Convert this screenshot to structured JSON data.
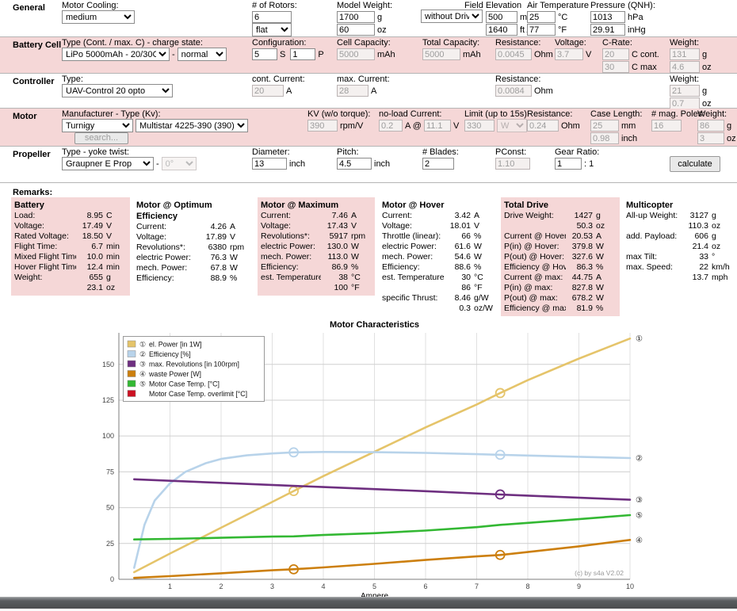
{
  "form": {
    "general": {
      "label": "General",
      "motor_cooling_label": "Motor Cooling:",
      "motor_cooling_value": "medium",
      "rotors_label": "# of Rotors:",
      "rotors_value": "6",
      "rotors_config_value": "flat",
      "model_weight_label": "Model Weight:",
      "model_weight_g": "1700",
      "model_weight_g_unit": "g",
      "model_weight_oz": "60",
      "model_weight_oz_unit": "oz",
      "drive_select_value": "without Drive",
      "field_elevation_label": "Field Elevation",
      "field_elevation_m": "500",
      "field_elevation_m_unit": "m ASL",
      "field_elevation_ft": "1640",
      "field_elevation_ft_unit": "ft ASL",
      "air_temp_label": "Air Temperature",
      "air_temp_c": "25",
      "air_temp_c_unit": "°C",
      "air_temp_f": "77",
      "air_temp_f_unit": "°F",
      "pressure_label": "Pressure (QNH):",
      "pressure_hpa": "1013",
      "pressure_hpa_unit": "hPa",
      "pressure_inhg": "29.91",
      "pressure_inhg_unit": "inHg"
    },
    "battery": {
      "label": "Battery Cell",
      "type_label": "Type (Cont. / max. C) - charge state:",
      "type_value": "LiPo 5000mAh - 20/30C",
      "type_sep": "-",
      "charge_state_value": "normal",
      "config_label": "Configuration:",
      "config_s": "5",
      "config_s_unit": "S",
      "config_p": "1",
      "config_p_unit": "P",
      "cell_capacity_label": "Cell Capacity:",
      "cell_capacity": "5000",
      "cell_capacity_unit": "mAh",
      "total_capacity_label": "Total Capacity:",
      "total_capacity": "5000",
      "total_capacity_unit": "mAh",
      "resistance_label": "Resistance:",
      "resistance": "0.0045",
      "resistance_unit": "Ohm",
      "voltage_label": "Voltage:",
      "voltage": "3.7",
      "voltage_unit": "V",
      "crate_label": "C-Rate:",
      "crate_cont": "20",
      "crate_cont_unit": "C cont.",
      "crate_max": "30",
      "crate_max_unit": "C max",
      "weight_label": "Weight:",
      "weight_g": "131",
      "weight_g_unit": "g",
      "weight_oz": "4.6",
      "weight_oz_unit": "oz"
    },
    "controller": {
      "label": "Controller",
      "type_label": "Type:",
      "type_value": "UAV-Control 20 opto",
      "cont_current_label": "cont. Current:",
      "cont_current": "20",
      "cont_current_unit": "A",
      "max_current_label": "max. Current:",
      "max_current": "28",
      "max_current_unit": "A",
      "resistance_label": "Resistance:",
      "resistance": "0.0084",
      "resistance_unit": "Ohm",
      "weight_label": "Weight:",
      "weight_g": "21",
      "weight_g_unit": "g",
      "weight_oz": "0.7",
      "weight_oz_unit": "oz"
    },
    "motor": {
      "label": "Motor",
      "manufacturer_label": "Manufacturer - Type (Kv):",
      "manufacturer_value": "Turnigy",
      "type_value": "Multistar 4225-390 (390)",
      "search_button": "search...",
      "kv_label": "KV (w/o torque):",
      "kv": "390",
      "kv_unit": "rpm/V",
      "noload_label": "no-load Current:",
      "noload_a": "0.2",
      "noload_a_unit": "A @",
      "noload_v": "11.1",
      "noload_v_unit": "V",
      "limit_label": "Limit (up to 15s):",
      "limit": "330",
      "limit_unit_value": "W",
      "resistance_label": "Resistance:",
      "resistance": "0.24",
      "resistance_unit": "Ohm",
      "case_length_label": "Case Length:",
      "case_mm": "25",
      "case_mm_unit": "mm",
      "case_inch": "0.98",
      "case_inch_unit": "inch",
      "poles_label": "# mag. Poles:",
      "poles": "16",
      "weight_label": "Weight:",
      "weight_g": "86",
      "weight_g_unit": "g",
      "weight_oz": "3",
      "weight_oz_unit": "oz"
    },
    "propeller": {
      "label": "Propeller",
      "type_label": "Type - yoke twist:",
      "type_value": "Graupner E Prop",
      "type_sep": "-",
      "yoke_value": "0°",
      "diameter_label": "Diameter:",
      "diameter": "13",
      "diameter_unit": "inch",
      "pitch_label": "Pitch:",
      "pitch": "4.5",
      "pitch_unit": "inch",
      "blades_label": "# Blades:",
      "blades": "2",
      "pconst_label": "PConst:",
      "pconst": "1.10",
      "gear_label": "Gear Ratio:",
      "gear": "1",
      "gear_unit": ": 1",
      "calculate_button": "calculate"
    }
  },
  "results": {
    "heading": "Remarks:",
    "columns": [
      {
        "title": "Battery",
        "tone": "pink",
        "rows": [
          [
            "Load:",
            "8.95",
            "C"
          ],
          [
            "Voltage:",
            "17.49",
            "V"
          ],
          [
            "Rated Voltage:",
            "18.50",
            "V"
          ],
          [
            "Flight Time:",
            "6.7",
            "min"
          ],
          [
            "Mixed Flight Time:",
            "10.0",
            "min"
          ],
          [
            "Hover Flight Time:",
            "12.4",
            "min"
          ],
          [
            "Weight:",
            "655",
            "g"
          ],
          [
            "",
            "23.1",
            "oz"
          ]
        ]
      },
      {
        "title": "Motor @ Optimum Efficiency",
        "tone": "white",
        "rows": [
          [
            "Current:",
            "4.26",
            "A"
          ],
          [
            "Voltage:",
            "17.89",
            "V"
          ],
          [
            "Revolutions*:",
            "6380",
            "rpm"
          ],
          [
            "electric Power:",
            "76.3",
            "W"
          ],
          [
            "mech. Power:",
            "67.8",
            "W"
          ],
          [
            "Efficiency:",
            "88.9",
            "%"
          ]
        ]
      },
      {
        "title": "Motor @ Maximum",
        "tone": "pink",
        "rows": [
          [
            "Current:",
            "7.46",
            "A"
          ],
          [
            "Voltage:",
            "17.43",
            "V"
          ],
          [
            "Revolutions*:",
            "5917",
            "rpm"
          ],
          [
            "electric Power:",
            "130.0",
            "W"
          ],
          [
            "mech. Power:",
            "113.0",
            "W"
          ],
          [
            "Efficiency:",
            "86.9",
            "%"
          ],
          [
            "est. Temperature:",
            "38",
            "°C"
          ],
          [
            "",
            "100",
            "°F"
          ]
        ]
      },
      {
        "title": "Motor @ Hover",
        "tone": "white",
        "rows": [
          [
            "Current:",
            "3.42",
            "A"
          ],
          [
            "Voltage:",
            "18.01",
            "V"
          ],
          [
            "Throttle (linear):",
            "66",
            "%"
          ],
          [
            "electric Power:",
            "61.6",
            "W"
          ],
          [
            "mech. Power:",
            "54.6",
            "W"
          ],
          [
            "Efficiency:",
            "88.6",
            "%"
          ],
          [
            "est. Temperature:",
            "30",
            "°C"
          ],
          [
            "",
            "86",
            "°F"
          ],
          [
            "specific Thrust:",
            "8.46",
            "g/W"
          ],
          [
            "",
            "0.3",
            "oz/W"
          ]
        ]
      },
      {
        "title": "Total Drive",
        "tone": "pink",
        "rows": [
          [
            "Drive Weight:",
            "1427",
            "g"
          ],
          [
            "",
            "50.3",
            "oz"
          ],
          [
            "Current @ Hover:",
            "20.53",
            "A"
          ],
          [
            "P(in) @ Hover:",
            "379.8",
            "W"
          ],
          [
            "P(out) @ Hover:",
            "327.6",
            "W"
          ],
          [
            "Efficiency @ Hover:",
            "86.3",
            "%"
          ],
          [
            "Current @ max:",
            "44.75",
            "A"
          ],
          [
            "P(in) @ max:",
            "827.8",
            "W"
          ],
          [
            "P(out) @ max:",
            "678.2",
            "W"
          ],
          [
            "Efficiency @ max:",
            "81.9",
            "%"
          ]
        ]
      },
      {
        "title": "Multicopter",
        "tone": "white",
        "rows": [
          [
            "All-up Weight:",
            "3127",
            "g"
          ],
          [
            "",
            "110.3",
            "oz"
          ],
          [
            "add. Payload:",
            "606",
            "g"
          ],
          [
            "",
            "21.4",
            "oz"
          ],
          [
            "max Tilt:",
            "33",
            "°"
          ],
          [
            "max. Speed:",
            "22",
            "km/h"
          ],
          [
            "",
            "13.7",
            "mph"
          ]
        ]
      }
    ]
  },
  "chart_data": {
    "type": "line",
    "title": "Motor Characteristics",
    "xlabel": "Ampere",
    "xlim": [
      0,
      10
    ],
    "ylim": [
      0,
      172
    ],
    "xticks": [
      1,
      2,
      3,
      4,
      5,
      6,
      7,
      8,
      9,
      10
    ],
    "yticks": [
      0,
      25,
      50,
      75,
      100,
      125,
      150
    ],
    "grid": true,
    "legend_position": "top-left",
    "copyright": "(c) by s4a   V2.02",
    "series": [
      {
        "name": "el. Power [in 1W]",
        "number": "①",
        "color": "#e5c46a",
        "points": [
          [
            0.3,
            5
          ],
          [
            1,
            18
          ],
          [
            2,
            36
          ],
          [
            3,
            54
          ],
          [
            3.42,
            61.6
          ],
          [
            4,
            72
          ],
          [
            5,
            89
          ],
          [
            6,
            106
          ],
          [
            7,
            122
          ],
          [
            7.46,
            130
          ],
          [
            8,
            139
          ],
          [
            9,
            154
          ],
          [
            10,
            168
          ]
        ],
        "markers": [
          [
            3.42,
            61.6
          ],
          [
            7.46,
            130
          ]
        ]
      },
      {
        "name": "Efficiency [%]",
        "number": "②",
        "color": "#b8d3ea",
        "points": [
          [
            0.3,
            8
          ],
          [
            0.5,
            38
          ],
          [
            0.7,
            55
          ],
          [
            1,
            67
          ],
          [
            1.3,
            75
          ],
          [
            1.7,
            81
          ],
          [
            2,
            84
          ],
          [
            2.5,
            86.5
          ],
          [
            3,
            87.8
          ],
          [
            3.42,
            88.6
          ],
          [
            4,
            88.9
          ],
          [
            5,
            88.7
          ],
          [
            6,
            88.2
          ],
          [
            7,
            87.3
          ],
          [
            7.46,
            86.9
          ],
          [
            8,
            86.4
          ],
          [
            9,
            85.5
          ],
          [
            10,
            84.6
          ]
        ],
        "markers": [
          [
            3.42,
            88.6
          ],
          [
            7.46,
            86.9
          ]
        ]
      },
      {
        "name": "max. Revolutions [in 100rpm]",
        "number": "③",
        "color": "#6e2f80",
        "points": [
          [
            0.3,
            69.8
          ],
          [
            2,
            67.3
          ],
          [
            4,
            64.4
          ],
          [
            6,
            61.5
          ],
          [
            7.46,
            59.2
          ],
          [
            8,
            58.4
          ],
          [
            10,
            55.5
          ]
        ],
        "markers": [
          [
            7.46,
            59.2
          ]
        ]
      },
      {
        "name": "waste Power [W]",
        "number": "④",
        "color": "#cc7f0e",
        "points": [
          [
            0.3,
            1
          ],
          [
            1,
            2.2
          ],
          [
            2,
            4.2
          ],
          [
            3,
            6.3
          ],
          [
            3.42,
            7
          ],
          [
            4,
            8.3
          ],
          [
            5,
            10.8
          ],
          [
            6,
            13.5
          ],
          [
            7,
            16
          ],
          [
            7.46,
            17
          ],
          [
            8,
            19
          ],
          [
            9,
            23
          ],
          [
            10,
            27.5
          ]
        ],
        "markers": [
          [
            3.42,
            7
          ],
          [
            7.46,
            17
          ]
        ]
      },
      {
        "name": "Motor Case Temp. [°C]",
        "number": "⑤",
        "color": "#33b833",
        "points": [
          [
            0.3,
            27.8
          ],
          [
            1,
            28.2
          ],
          [
            2,
            29
          ],
          [
            3,
            29.8
          ],
          [
            3.42,
            30
          ],
          [
            4,
            30.9
          ],
          [
            5,
            32.2
          ],
          [
            6,
            34
          ],
          [
            7,
            36.4
          ],
          [
            7.46,
            38
          ],
          [
            8,
            39.4
          ],
          [
            9,
            42
          ],
          [
            10,
            44.8
          ]
        ],
        "markers": []
      },
      {
        "name": "Motor Case Temp. overlimit [°C]",
        "number": "",
        "color": "#cc1122",
        "points": [],
        "markers": []
      }
    ]
  }
}
